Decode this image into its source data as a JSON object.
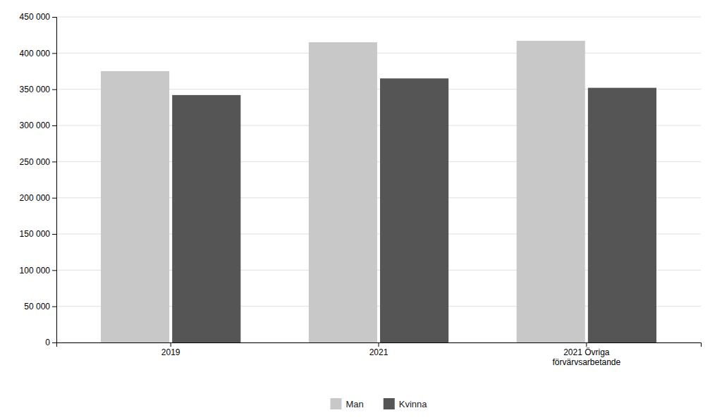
{
  "chart_data": {
    "type": "bar",
    "categories": [
      "2019",
      "2021",
      "2021 Övriga\nförvärvsarbetande"
    ],
    "series": [
      {
        "name": "Man",
        "color": "#c8c8c8",
        "values": [
          375000,
          415000,
          417000
        ]
      },
      {
        "name": "Kvinna",
        "color": "#555555",
        "values": [
          342000,
          365000,
          352000
        ]
      }
    ],
    "ylim": [
      0,
      450000
    ],
    "yticks": [
      0,
      {
        "value": 50000,
        "label": "50 000"
      },
      {
        "value": 100000,
        "label": "100 000"
      },
      {
        "value": 150000,
        "label": "150 000"
      },
      {
        "value": 200000,
        "label": "200 000"
      },
      {
        "value": 250000,
        "label": "250 000"
      },
      {
        "value": 300000,
        "label": "300 000"
      },
      {
        "value": 350000,
        "label": "350 000"
      },
      {
        "value": 400000,
        "label": "400 000"
      },
      {
        "value": 450000,
        "label": "450 000"
      }
    ],
    "grid": true,
    "legend": "bottom"
  }
}
